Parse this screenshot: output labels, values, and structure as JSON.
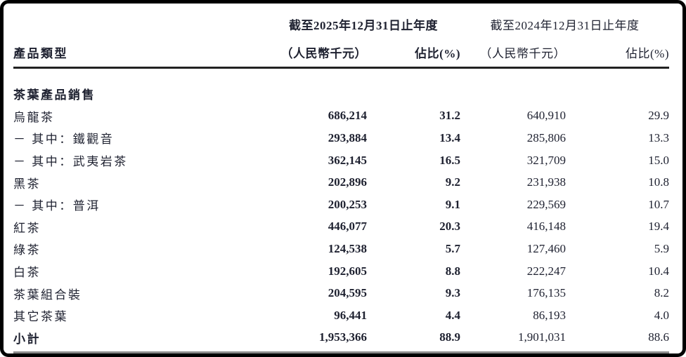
{
  "page": {
    "background": "#ffffff",
    "frame_color": "#000000",
    "text_color": "#1e2130",
    "header_rule_color": "#222222",
    "subtotal_rule_color": "#8a8a8a"
  },
  "table": {
    "row_header": "產品類型",
    "col_groups": [
      {
        "title": "截至2025年12月31日止年度",
        "unit": "（人民幣千元）",
        "share": "佔比(%)",
        "emphasis": true
      },
      {
        "title": "截至2024年12月31日止年度",
        "unit": "（人民幣千元）",
        "share": "佔比(%)",
        "emphasis": false
      }
    ],
    "rows": [
      {
        "type": "section",
        "label": "茶葉產品銷售",
        "v2025": "",
        "p2025": "",
        "v2024": "",
        "p2024": ""
      },
      {
        "type": "data",
        "label": "烏龍茶",
        "v2025": "686,214",
        "p2025": "31.2",
        "v2024": "640,910",
        "p2024": "29.9"
      },
      {
        "type": "data",
        "label": "－ 其中：鐵觀音",
        "v2025": "293,884",
        "p2025": "13.4",
        "v2024": "285,806",
        "p2024": "13.3"
      },
      {
        "type": "data",
        "label": "－ 其中：武夷岩茶",
        "v2025": "362,145",
        "p2025": "16.5",
        "v2024": "321,709",
        "p2024": "15.0"
      },
      {
        "type": "data",
        "label": "黑茶",
        "v2025": "202,896",
        "p2025": "9.2",
        "v2024": "231,938",
        "p2024": "10.8"
      },
      {
        "type": "data",
        "label": "－ 其中：普洱",
        "v2025": "200,253",
        "p2025": "9.1",
        "v2024": "229,569",
        "p2024": "10.7"
      },
      {
        "type": "data",
        "label": "紅茶",
        "v2025": "446,077",
        "p2025": "20.3",
        "v2024": "416,148",
        "p2024": "19.4"
      },
      {
        "type": "data",
        "label": "綠茶",
        "v2025": "124,538",
        "p2025": "5.7",
        "v2024": "127,460",
        "p2024": "5.9"
      },
      {
        "type": "data",
        "label": "白茶",
        "v2025": "192,605",
        "p2025": "8.8",
        "v2024": "222,247",
        "p2024": "10.4"
      },
      {
        "type": "data",
        "label": "茶葉組合裝",
        "v2025": "204,595",
        "p2025": "9.3",
        "v2024": "176,135",
        "p2024": "8.2"
      },
      {
        "type": "data",
        "label": "其它茶葉",
        "v2025": "96,441",
        "p2025": "4.4",
        "v2024": "86,193",
        "p2024": "4.0"
      },
      {
        "type": "subtotal",
        "label": "小計",
        "v2025": "1,953,366",
        "p2025": "88.9",
        "v2024": "1,901,031",
        "p2024": "88.6"
      }
    ]
  }
}
